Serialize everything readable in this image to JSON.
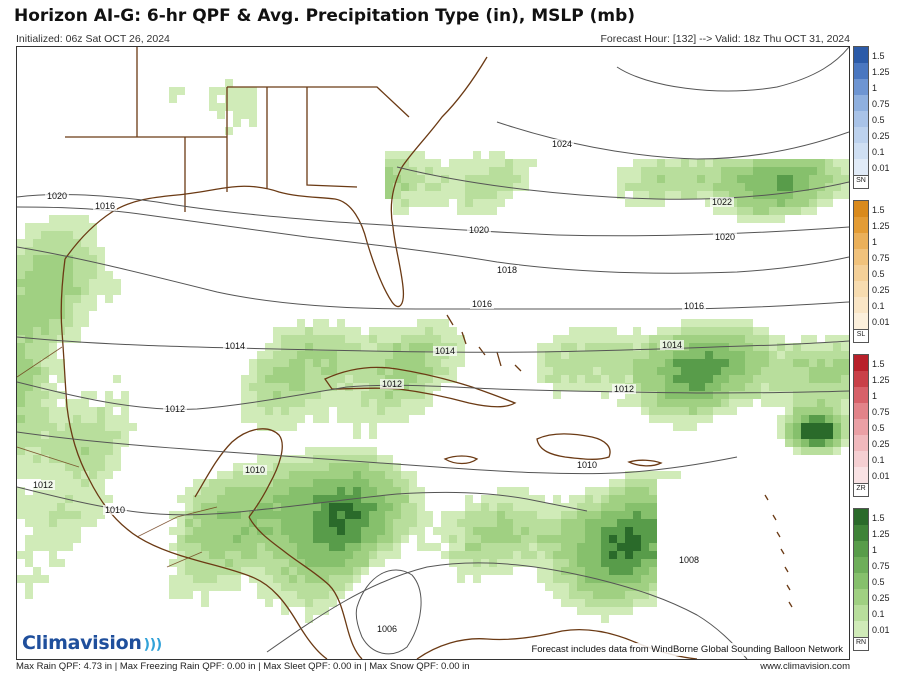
{
  "header": {
    "title": "Horizon AI-G: 6-hr QPF & Avg. Precipitation Type (in), MSLP (mb)",
    "initialized": "Initialized: 06z Sat OCT 26, 2024",
    "forecast": "Forecast Hour: [132] --> Valid: 18z Thu OCT 31, 2024"
  },
  "map": {
    "isobar_labels": [
      "1024",
      "1022",
      "1020",
      "1020",
      "1020",
      "1018",
      "1016",
      "1016",
      "1016",
      "1014",
      "1014",
      "1014",
      "1012",
      "1012",
      "1012",
      "1012",
      "1010",
      "1010",
      "1010",
      "1008",
      "1006"
    ],
    "credit": "Forecast includes data from WindBorne Global Sounding Balloon Network",
    "logo_text": "Climavision"
  },
  "legend": {
    "ticks": [
      "1.5",
      "1.25",
      "1",
      "0.75",
      "0.5",
      "0.25",
      "0.1",
      "0.01"
    ],
    "types": [
      {
        "code": "SN",
        "colors": [
          "#2c5ba8",
          "#4a77c0",
          "#6e95d2",
          "#8fb0df",
          "#a9c3e8",
          "#bdd2ee",
          "#cfdff3",
          "#e1ebf8"
        ]
      },
      {
        "code": "SL",
        "colors": [
          "#d98a1c",
          "#e39c35",
          "#eab05a",
          "#f0c27c",
          "#f4d098",
          "#f7dcb0",
          "#fae6c6",
          "#fcf0dc"
        ]
      },
      {
        "code": "ZR",
        "colors": [
          "#b8202a",
          "#c94048",
          "#d76169",
          "#e28389",
          "#eaa0a5",
          "#f0b9bd",
          "#f5cfd2",
          "#f9e2e4"
        ]
      },
      {
        "code": "RN",
        "colors": [
          "#2a6a2a",
          "#3f8338",
          "#589c4a",
          "#6eae5a",
          "#86c06c",
          "#a0d082",
          "#b8de9c",
          "#d0ebb8"
        ]
      }
    ]
  },
  "footer": {
    "stats": "Max Rain QPF: 4.73 in  |  Max Freezing Rain QPF: 0.00 in  |  Max Sleet QPF: 0.00 in  |  Max Snow QPF: 0.00 in",
    "website": "www.climavision.com"
  }
}
